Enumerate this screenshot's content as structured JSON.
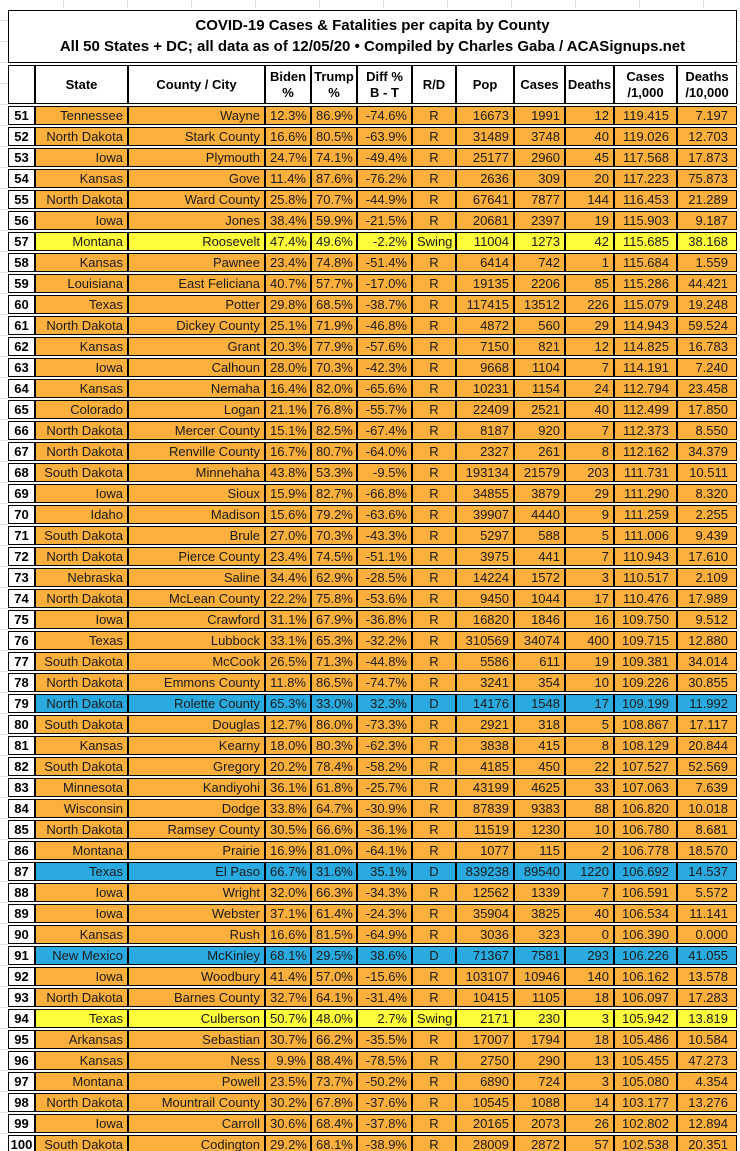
{
  "colors": {
    "republican_row": "#FBAF3C",
    "swing_row": "#FDFD3C",
    "democrat_row": "#29ABE2",
    "border": "#000000",
    "header_bg": "#FFFFFF"
  },
  "chart_data": {
    "type": "table",
    "title": "COVID-19 Cases & Fatalities per capita by County",
    "subtitle": "All 50 States + DC; all data as of 12/05/20  • Compiled by Charles Gaba / ACASignups.net",
    "columns": [
      "",
      "State",
      "County / City",
      "Biden\n%",
      "Trump\n%",
      "Diff %\nB - T",
      "R/D",
      "Pop",
      "Cases",
      "Deaths",
      "Cases\n/1,000",
      "Deaths\n/10,000"
    ],
    "column_keys": [
      "rank",
      "state",
      "county",
      "biden_pct",
      "trump_pct",
      "diff_pct",
      "rd",
      "pop",
      "cases",
      "deaths",
      "cases_per_1000",
      "deaths_per_10000"
    ],
    "rows": [
      {
        "rank": "51",
        "state": "Tennessee",
        "county": "Wayne",
        "biden_pct": "12.3%",
        "trump_pct": "86.9%",
        "diff_pct": "-74.6%",
        "rd": "R",
        "pop": "16673",
        "cases": "1991",
        "deaths": "12",
        "cases_per_1000": "119.415",
        "deaths_per_10000": "7.197"
      },
      {
        "rank": "52",
        "state": "North Dakota",
        "county": "Stark County",
        "biden_pct": "16.6%",
        "trump_pct": "80.5%",
        "diff_pct": "-63.9%",
        "rd": "R",
        "pop": "31489",
        "cases": "3748",
        "deaths": "40",
        "cases_per_1000": "119.026",
        "deaths_per_10000": "12.703"
      },
      {
        "rank": "53",
        "state": "Iowa",
        "county": "Plymouth",
        "biden_pct": "24.7%",
        "trump_pct": "74.1%",
        "diff_pct": "-49.4%",
        "rd": "R",
        "pop": "25177",
        "cases": "2960",
        "deaths": "45",
        "cases_per_1000": "117.568",
        "deaths_per_10000": "17.873"
      },
      {
        "rank": "54",
        "state": "Kansas",
        "county": "Gove",
        "biden_pct": "11.4%",
        "trump_pct": "87.6%",
        "diff_pct": "-76.2%",
        "rd": "R",
        "pop": "2636",
        "cases": "309",
        "deaths": "20",
        "cases_per_1000": "117.223",
        "deaths_per_10000": "75.873"
      },
      {
        "rank": "55",
        "state": "North Dakota",
        "county": "Ward County",
        "biden_pct": "25.8%",
        "trump_pct": "70.7%",
        "diff_pct": "-44.9%",
        "rd": "R",
        "pop": "67641",
        "cases": "7877",
        "deaths": "144",
        "cases_per_1000": "116.453",
        "deaths_per_10000": "21.289"
      },
      {
        "rank": "56",
        "state": "Iowa",
        "county": "Jones",
        "biden_pct": "38.4%",
        "trump_pct": "59.9%",
        "diff_pct": "-21.5%",
        "rd": "R",
        "pop": "20681",
        "cases": "2397",
        "deaths": "19",
        "cases_per_1000": "115.903",
        "deaths_per_10000": "9.187"
      },
      {
        "rank": "57",
        "state": "Montana",
        "county": "Roosevelt",
        "biden_pct": "47.4%",
        "trump_pct": "49.6%",
        "diff_pct": "-2.2%",
        "rd": "Swing",
        "pop": "11004",
        "cases": "1273",
        "deaths": "42",
        "cases_per_1000": "115.685",
        "deaths_per_10000": "38.168"
      },
      {
        "rank": "58",
        "state": "Kansas",
        "county": "Pawnee",
        "biden_pct": "23.4%",
        "trump_pct": "74.8%",
        "diff_pct": "-51.4%",
        "rd": "R",
        "pop": "6414",
        "cases": "742",
        "deaths": "1",
        "cases_per_1000": "115.684",
        "deaths_per_10000": "1.559"
      },
      {
        "rank": "59",
        "state": "Louisiana",
        "county": "East Feliciana",
        "biden_pct": "40.7%",
        "trump_pct": "57.7%",
        "diff_pct": "-17.0%",
        "rd": "R",
        "pop": "19135",
        "cases": "2206",
        "deaths": "85",
        "cases_per_1000": "115.286",
        "deaths_per_10000": "44.421"
      },
      {
        "rank": "60",
        "state": "Texas",
        "county": "Potter",
        "biden_pct": "29.8%",
        "trump_pct": "68.5%",
        "diff_pct": "-38.7%",
        "rd": "R",
        "pop": "117415",
        "cases": "13512",
        "deaths": "226",
        "cases_per_1000": "115.079",
        "deaths_per_10000": "19.248"
      },
      {
        "rank": "61",
        "state": "North Dakota",
        "county": "Dickey County",
        "biden_pct": "25.1%",
        "trump_pct": "71.9%",
        "diff_pct": "-46.8%",
        "rd": "R",
        "pop": "4872",
        "cases": "560",
        "deaths": "29",
        "cases_per_1000": "114.943",
        "deaths_per_10000": "59.524"
      },
      {
        "rank": "62",
        "state": "Kansas",
        "county": "Grant",
        "biden_pct": "20.3%",
        "trump_pct": "77.9%",
        "diff_pct": "-57.6%",
        "rd": "R",
        "pop": "7150",
        "cases": "821",
        "deaths": "12",
        "cases_per_1000": "114.825",
        "deaths_per_10000": "16.783"
      },
      {
        "rank": "63",
        "state": "Iowa",
        "county": "Calhoun",
        "biden_pct": "28.0%",
        "trump_pct": "70.3%",
        "diff_pct": "-42.3%",
        "rd": "R",
        "pop": "9668",
        "cases": "1104",
        "deaths": "7",
        "cases_per_1000": "114.191",
        "deaths_per_10000": "7.240"
      },
      {
        "rank": "64",
        "state": "Kansas",
        "county": "Nemaha",
        "biden_pct": "16.4%",
        "trump_pct": "82.0%",
        "diff_pct": "-65.6%",
        "rd": "R",
        "pop": "10231",
        "cases": "1154",
        "deaths": "24",
        "cases_per_1000": "112.794",
        "deaths_per_10000": "23.458"
      },
      {
        "rank": "65",
        "state": "Colorado",
        "county": "Logan",
        "biden_pct": "21.1%",
        "trump_pct": "76.8%",
        "diff_pct": "-55.7%",
        "rd": "R",
        "pop": "22409",
        "cases": "2521",
        "deaths": "40",
        "cases_per_1000": "112.499",
        "deaths_per_10000": "17.850"
      },
      {
        "rank": "66",
        "state": "North Dakota",
        "county": "Mercer County",
        "biden_pct": "15.1%",
        "trump_pct": "82.5%",
        "diff_pct": "-67.4%",
        "rd": "R",
        "pop": "8187",
        "cases": "920",
        "deaths": "7",
        "cases_per_1000": "112.373",
        "deaths_per_10000": "8.550"
      },
      {
        "rank": "67",
        "state": "North Dakota",
        "county": "Renville County",
        "biden_pct": "16.7%",
        "trump_pct": "80.7%",
        "diff_pct": "-64.0%",
        "rd": "R",
        "pop": "2327",
        "cases": "261",
        "deaths": "8",
        "cases_per_1000": "112.162",
        "deaths_per_10000": "34.379"
      },
      {
        "rank": "68",
        "state": "South Dakota",
        "county": "Minnehaha",
        "biden_pct": "43.8%",
        "trump_pct": "53.3%",
        "diff_pct": "-9.5%",
        "rd": "R",
        "pop": "193134",
        "cases": "21579",
        "deaths": "203",
        "cases_per_1000": "111.731",
        "deaths_per_10000": "10.511"
      },
      {
        "rank": "69",
        "state": "Iowa",
        "county": "Sioux",
        "biden_pct": "15.9%",
        "trump_pct": "82.7%",
        "diff_pct": "-66.8%",
        "rd": "R",
        "pop": "34855",
        "cases": "3879",
        "deaths": "29",
        "cases_per_1000": "111.290",
        "deaths_per_10000": "8.320"
      },
      {
        "rank": "70",
        "state": "Idaho",
        "county": "Madison",
        "biden_pct": "15.6%",
        "trump_pct": "79.2%",
        "diff_pct": "-63.6%",
        "rd": "R",
        "pop": "39907",
        "cases": "4440",
        "deaths": "9",
        "cases_per_1000": "111.259",
        "deaths_per_10000": "2.255"
      },
      {
        "rank": "71",
        "state": "South Dakota",
        "county": "Brule",
        "biden_pct": "27.0%",
        "trump_pct": "70.3%",
        "diff_pct": "-43.3%",
        "rd": "R",
        "pop": "5297",
        "cases": "588",
        "deaths": "5",
        "cases_per_1000": "111.006",
        "deaths_per_10000": "9.439"
      },
      {
        "rank": "72",
        "state": "North Dakota",
        "county": "Pierce County",
        "biden_pct": "23.4%",
        "trump_pct": "74.5%",
        "diff_pct": "-51.1%",
        "rd": "R",
        "pop": "3975",
        "cases": "441",
        "deaths": "7",
        "cases_per_1000": "110.943",
        "deaths_per_10000": "17.610"
      },
      {
        "rank": "73",
        "state": "Nebraska",
        "county": "Saline",
        "biden_pct": "34.4%",
        "trump_pct": "62.9%",
        "diff_pct": "-28.5%",
        "rd": "R",
        "pop": "14224",
        "cases": "1572",
        "deaths": "3",
        "cases_per_1000": "110.517",
        "deaths_per_10000": "2.109"
      },
      {
        "rank": "74",
        "state": "North Dakota",
        "county": "McLean County",
        "biden_pct": "22.2%",
        "trump_pct": "75.8%",
        "diff_pct": "-53.6%",
        "rd": "R",
        "pop": "9450",
        "cases": "1044",
        "deaths": "17",
        "cases_per_1000": "110.476",
        "deaths_per_10000": "17.989"
      },
      {
        "rank": "75",
        "state": "Iowa",
        "county": "Crawford",
        "biden_pct": "31.1%",
        "trump_pct": "67.9%",
        "diff_pct": "-36.8%",
        "rd": "R",
        "pop": "16820",
        "cases": "1846",
        "deaths": "16",
        "cases_per_1000": "109.750",
        "deaths_per_10000": "9.512"
      },
      {
        "rank": "76",
        "state": "Texas",
        "county": "Lubbock",
        "biden_pct": "33.1%",
        "trump_pct": "65.3%",
        "diff_pct": "-32.2%",
        "rd": "R",
        "pop": "310569",
        "cases": "34074",
        "deaths": "400",
        "cases_per_1000": "109.715",
        "deaths_per_10000": "12.880"
      },
      {
        "rank": "77",
        "state": "South Dakota",
        "county": "McCook",
        "biden_pct": "26.5%",
        "trump_pct": "71.3%",
        "diff_pct": "-44.8%",
        "rd": "R",
        "pop": "5586",
        "cases": "611",
        "deaths": "19",
        "cases_per_1000": "109.381",
        "deaths_per_10000": "34.014"
      },
      {
        "rank": "78",
        "state": "North Dakota",
        "county": "Emmons County",
        "biden_pct": "11.8%",
        "trump_pct": "86.5%",
        "diff_pct": "-74.7%",
        "rd": "R",
        "pop": "3241",
        "cases": "354",
        "deaths": "10",
        "cases_per_1000": "109.226",
        "deaths_per_10000": "30.855"
      },
      {
        "rank": "79",
        "state": "North Dakota",
        "county": "Rolette County",
        "biden_pct": "65.3%",
        "trump_pct": "33.0%",
        "diff_pct": "32.3%",
        "rd": "D",
        "pop": "14176",
        "cases": "1548",
        "deaths": "17",
        "cases_per_1000": "109.199",
        "deaths_per_10000": "11.992"
      },
      {
        "rank": "80",
        "state": "South Dakota",
        "county": "Douglas",
        "biden_pct": "12.7%",
        "trump_pct": "86.0%",
        "diff_pct": "-73.3%",
        "rd": "R",
        "pop": "2921",
        "cases": "318",
        "deaths": "5",
        "cases_per_1000": "108.867",
        "deaths_per_10000": "17.117"
      },
      {
        "rank": "81",
        "state": "Kansas",
        "county": "Kearny",
        "biden_pct": "18.0%",
        "trump_pct": "80.3%",
        "diff_pct": "-62.3%",
        "rd": "R",
        "pop": "3838",
        "cases": "415",
        "deaths": "8",
        "cases_per_1000": "108.129",
        "deaths_per_10000": "20.844"
      },
      {
        "rank": "82",
        "state": "South Dakota",
        "county": "Gregory",
        "biden_pct": "20.2%",
        "trump_pct": "78.4%",
        "diff_pct": "-58.2%",
        "rd": "R",
        "pop": "4185",
        "cases": "450",
        "deaths": "22",
        "cases_per_1000": "107.527",
        "deaths_per_10000": "52.569"
      },
      {
        "rank": "83",
        "state": "Minnesota",
        "county": "Kandiyohi",
        "biden_pct": "36.1%",
        "trump_pct": "61.8%",
        "diff_pct": "-25.7%",
        "rd": "R",
        "pop": "43199",
        "cases": "4625",
        "deaths": "33",
        "cases_per_1000": "107.063",
        "deaths_per_10000": "7.639"
      },
      {
        "rank": "84",
        "state": "Wisconsin",
        "county": "Dodge",
        "biden_pct": "33.8%",
        "trump_pct": "64.7%",
        "diff_pct": "-30.9%",
        "rd": "R",
        "pop": "87839",
        "cases": "9383",
        "deaths": "88",
        "cases_per_1000": "106.820",
        "deaths_per_10000": "10.018"
      },
      {
        "rank": "85",
        "state": "North Dakota",
        "county": "Ramsey County",
        "biden_pct": "30.5%",
        "trump_pct": "66.6%",
        "diff_pct": "-36.1%",
        "rd": "R",
        "pop": "11519",
        "cases": "1230",
        "deaths": "10",
        "cases_per_1000": "106.780",
        "deaths_per_10000": "8.681"
      },
      {
        "rank": "86",
        "state": "Montana",
        "county": "Prairie",
        "biden_pct": "16.9%",
        "trump_pct": "81.0%",
        "diff_pct": "-64.1%",
        "rd": "R",
        "pop": "1077",
        "cases": "115",
        "deaths": "2",
        "cases_per_1000": "106.778",
        "deaths_per_10000": "18.570"
      },
      {
        "rank": "87",
        "state": "Texas",
        "county": "El Paso",
        "biden_pct": "66.7%",
        "trump_pct": "31.6%",
        "diff_pct": "35.1%",
        "rd": "D",
        "pop": "839238",
        "cases": "89540",
        "deaths": "1220",
        "cases_per_1000": "106.692",
        "deaths_per_10000": "14.537"
      },
      {
        "rank": "88",
        "state": "Iowa",
        "county": "Wright",
        "biden_pct": "32.0%",
        "trump_pct": "66.3%",
        "diff_pct": "-34.3%",
        "rd": "R",
        "pop": "12562",
        "cases": "1339",
        "deaths": "7",
        "cases_per_1000": "106.591",
        "deaths_per_10000": "5.572"
      },
      {
        "rank": "89",
        "state": "Iowa",
        "county": "Webster",
        "biden_pct": "37.1%",
        "trump_pct": "61.4%",
        "diff_pct": "-24.3%",
        "rd": "R",
        "pop": "35904",
        "cases": "3825",
        "deaths": "40",
        "cases_per_1000": "106.534",
        "deaths_per_10000": "11.141"
      },
      {
        "rank": "90",
        "state": "Kansas",
        "county": "Rush",
        "biden_pct": "16.6%",
        "trump_pct": "81.5%",
        "diff_pct": "-64.9%",
        "rd": "R",
        "pop": "3036",
        "cases": "323",
        "deaths": "0",
        "cases_per_1000": "106.390",
        "deaths_per_10000": "0.000"
      },
      {
        "rank": "91",
        "state": "New Mexico",
        "county": "McKinley",
        "biden_pct": "68.1%",
        "trump_pct": "29.5%",
        "diff_pct": "38.6%",
        "rd": "D",
        "pop": "71367",
        "cases": "7581",
        "deaths": "293",
        "cases_per_1000": "106.226",
        "deaths_per_10000": "41.055"
      },
      {
        "rank": "92",
        "state": "Iowa",
        "county": "Woodbury",
        "biden_pct": "41.4%",
        "trump_pct": "57.0%",
        "diff_pct": "-15.6%",
        "rd": "R",
        "pop": "103107",
        "cases": "10946",
        "deaths": "140",
        "cases_per_1000": "106.162",
        "deaths_per_10000": "13.578"
      },
      {
        "rank": "93",
        "state": "North Dakota",
        "county": "Barnes County",
        "biden_pct": "32.7%",
        "trump_pct": "64.1%",
        "diff_pct": "-31.4%",
        "rd": "R",
        "pop": "10415",
        "cases": "1105",
        "deaths": "18",
        "cases_per_1000": "106.097",
        "deaths_per_10000": "17.283"
      },
      {
        "rank": "94",
        "state": "Texas",
        "county": "Culberson",
        "biden_pct": "50.7%",
        "trump_pct": "48.0%",
        "diff_pct": "2.7%",
        "rd": "Swing",
        "pop": "2171",
        "cases": "230",
        "deaths": "3",
        "cases_per_1000": "105.942",
        "deaths_per_10000": "13.819"
      },
      {
        "rank": "95",
        "state": "Arkansas",
        "county": "Sebastian",
        "biden_pct": "30.7%",
        "trump_pct": "66.2%",
        "diff_pct": "-35.5%",
        "rd": "R",
        "pop": "17007",
        "cases": "1794",
        "deaths": "18",
        "cases_per_1000": "105.486",
        "deaths_per_10000": "10.584"
      },
      {
        "rank": "96",
        "state": "Kansas",
        "county": "Ness",
        "biden_pct": "9.9%",
        "trump_pct": "88.4%",
        "diff_pct": "-78.5%",
        "rd": "R",
        "pop": "2750",
        "cases": "290",
        "deaths": "13",
        "cases_per_1000": "105.455",
        "deaths_per_10000": "47.273"
      },
      {
        "rank": "97",
        "state": "Montana",
        "county": "Powell",
        "biden_pct": "23.5%",
        "trump_pct": "73.7%",
        "diff_pct": "-50.2%",
        "rd": "R",
        "pop": "6890",
        "cases": "724",
        "deaths": "3",
        "cases_per_1000": "105.080",
        "deaths_per_10000": "4.354"
      },
      {
        "rank": "98",
        "state": "North Dakota",
        "county": "Mountrail County",
        "biden_pct": "30.2%",
        "trump_pct": "67.8%",
        "diff_pct": "-37.6%",
        "rd": "R",
        "pop": "10545",
        "cases": "1088",
        "deaths": "14",
        "cases_per_1000": "103.177",
        "deaths_per_10000": "13.276"
      },
      {
        "rank": "99",
        "state": "Iowa",
        "county": "Carroll",
        "biden_pct": "30.6%",
        "trump_pct": "68.4%",
        "diff_pct": "-37.8%",
        "rd": "R",
        "pop": "20165",
        "cases": "2073",
        "deaths": "26",
        "cases_per_1000": "102.802",
        "deaths_per_10000": "12.894"
      },
      {
        "rank": "100",
        "state": "South Dakota",
        "county": "Codington",
        "biden_pct": "29.2%",
        "trump_pct": "68.1%",
        "diff_pct": "-38.9%",
        "rd": "R",
        "pop": "28009",
        "cases": "2872",
        "deaths": "57",
        "cases_per_1000": "102.538",
        "deaths_per_10000": "20.351"
      }
    ]
  }
}
